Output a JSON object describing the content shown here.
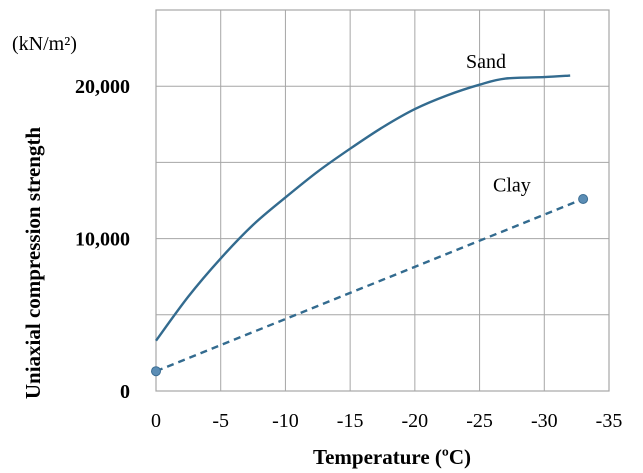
{
  "chart_data": {
    "type": "line",
    "title": "",
    "xlabel": "Temperature (ºC)",
    "ylabel": "Uniaxial compression strength",
    "y_unit": "(kN/m²)",
    "xlim": [
      0,
      -35
    ],
    "ylim": [
      0,
      25000
    ],
    "x_ticks": [
      0,
      -5,
      -10,
      -15,
      -20,
      -25,
      -30,
      -35
    ],
    "x_tick_labels": [
      "0",
      "-5",
      "-10",
      "-15",
      "-20",
      "-25",
      "-30",
      "-35"
    ],
    "y_ticks": [
      0,
      10000,
      20000
    ],
    "y_tick_labels": [
      "0",
      "10,000",
      "20,000"
    ],
    "grid": true,
    "series": [
      {
        "name": "Sand",
        "style": "solid",
        "color": "#336b8f",
        "x": [
          0,
          -2.5,
          -5,
          -7.5,
          -10,
          -12.5,
          -15,
          -17.5,
          -20,
          -22.5,
          -25,
          -27,
          -30,
          -32
        ],
        "y": [
          3300,
          6200,
          8700,
          10900,
          12700,
          14400,
          15900,
          17300,
          18500,
          19400,
          20100,
          20500,
          20600,
          20700
        ]
      },
      {
        "name": "Clay",
        "style": "dashed",
        "color": "#336b8f",
        "x": [
          0,
          -33
        ],
        "y": [
          1300,
          12600
        ],
        "markers": true
      }
    ]
  }
}
